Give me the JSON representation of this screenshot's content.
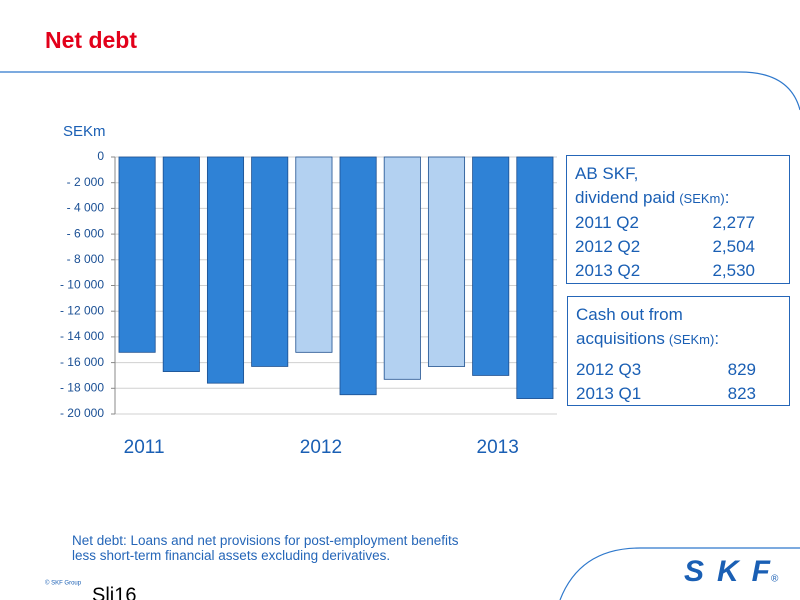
{
  "chart_data": {
    "type": "bar",
    "title": "Net debt",
    "y_label": "SEKm",
    "categories": [
      "2011",
      null,
      null,
      null,
      "2012",
      null,
      null,
      null,
      "2013",
      null
    ],
    "values": [
      -15200,
      -16700,
      -17600,
      -16300,
      -15200,
      -18500,
      -17300,
      -16300,
      -17000,
      -18800
    ],
    "colors": [
      "#2f82d6",
      "#2f82d6",
      "#2f82d6",
      "#2f82d6",
      "#b3d1f1",
      "#2f82d6",
      "#b3d1f1",
      "#b3d1f1",
      "#2f82d6",
      "#2f82d6"
    ],
    "ylim": [
      -20000,
      0
    ],
    "yticks": [
      0,
      {
        "value": -2000,
        "label": "- 2 000"
      },
      {
        "value": -4000,
        "label": "- 4 000"
      },
      {
        "value": -6000,
        "label": "- 6 000"
      },
      {
        "value": -8000,
        "label": "- 8 000"
      },
      {
        "value": -10000,
        "label": "- 10 000"
      },
      {
        "value": -12000,
        "label": "- 12 000"
      },
      {
        "value": -14000,
        "label": "- 14 000"
      },
      {
        "value": -16000,
        "label": "- 16 000"
      },
      {
        "value": -18000,
        "label": "- 18 000"
      },
      {
        "value": -20000,
        "label": "- 20 000"
      }
    ],
    "grid": true,
    "boxes": [
      {
        "heading": "AB SKF,",
        "label": "dividend paid",
        "unit": "(SEKm)",
        "end": ":",
        "rows": [
          [
            "2011 Q2",
            "2,277"
          ],
          [
            "2012 Q2",
            "2,504"
          ],
          [
            "2013 Q2",
            "2,530"
          ]
        ]
      },
      {
        "heading": "Cash out from",
        "label": "acquisitions",
        "unit": "(SEKm)",
        "end": ":",
        "rows": [
          [
            "2012 Q3",
            "829"
          ],
          [
            "2013 Q1",
            "823"
          ]
        ]
      }
    ],
    "footnote": [
      "Net debt: Loans and net provisions for post-employment benefits",
      "less short-term financial assets excluding derivatives."
    ],
    "copyright": "© SKF Group",
    "slide": "Sli16",
    "logo": "SKF",
    "logo_mark": "®"
  }
}
